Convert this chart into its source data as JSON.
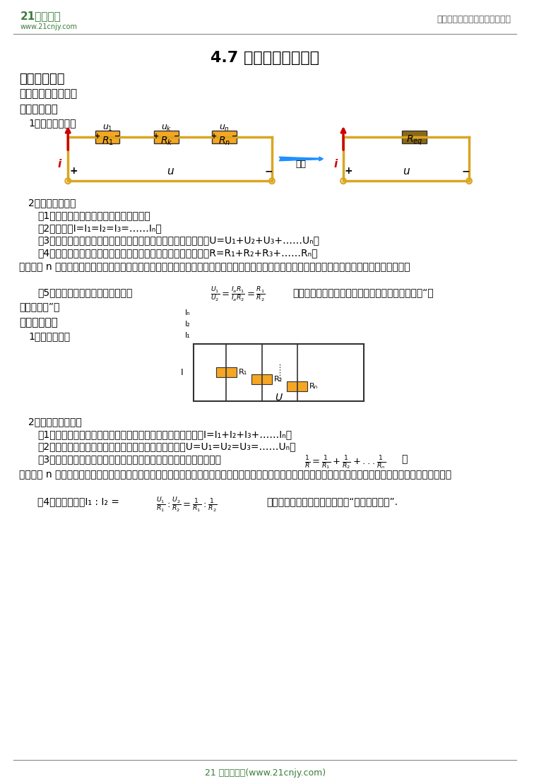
{
  "title": "4.7 电路的分析与应用",
  "header_right": "中小学教育资源及组卷应用平台",
  "footer": "21 世纪教育网(www.21cnjy.com)",
  "bg_color": "#ffffff",
  "orange_color": "#F5A623",
  "wire_color": "#DAA520",
  "red_color": "#CC0000",
  "blue_color": "#1E90FF",
  "green_color": "#3a7d3a",
  "brown_color": "#8B6914",
  "section1": "一、考点分析",
  "section1_sub": "考点一、串并连电路",
  "serial_title": "一、串联电路",
  "serial_item1": "1、串联电路图：",
  "serial_item2": "2、串联电路特点",
  "serial_feat1": "（1）电流：串联电路中各处电流都相等。",
  "serial_feat2": "（2）公式：I=I₁=I₂=I₃=……Iₙ。",
  "serial_feat3": "（3）电压：串联电路中总电压等于各部分电路电压之和。公式：U=U₁+U₂+U₃+……Uₙ。",
  "serial_feat4": "（4）电阱：串联电路中总电阱等于各部分电路电阱之和。公式：R=R₁+R₂+R₃+……Rₙ。",
  "serial_note": "说明：把 n 段导体串联起来，总电阱比任何一段导体的电阱都大，这相当于增加了导体的长度。串联分压，电阱的阱值越大，它分担的电压就越大。",
  "serial_feat5_pre": "（5）比例分配：利用欧姆定律可得",
  "serial_feat5_post": "，因此，串联电路分电压的多少与电阱成正比。即“串联分压正比”。",
  "serial_feat5_end": "联分压正比”。",
  "parallel_title": "二、并联电路",
  "parallel_item1": "1、并联电路图",
  "parallel_item2": "2、并联电路的特点",
  "parallel_feat1": "（1）电流：并联电路中总电流等于各支路中电流之和。公式：I=I₁+I₂+I₃+……Iₙ。",
  "parallel_feat2": "（2）电压：并联电路各支路两端的电压都相等。公式：U=U₁=U₂=U₃=……Uₙ。",
  "parallel_feat3_pre": "（3）电阱：并联电路总电阱的倒数等于各支路电阱倒数之和。公式：",
  "parallel_note": "说明：把 n 段导体并联起来，总电阱比任何一段导体的电阱都小，这相当于导体的横截面积增大。并联电路中，某条支路上的电阱越小，则该条支路上的电流越大。",
  "parallel_feat4_pre": "（4）比例分配：I₁ : I₂ =",
  "parallel_feat4_post": "，电流的分配与电阱成反比，即“并联分流反比”."
}
